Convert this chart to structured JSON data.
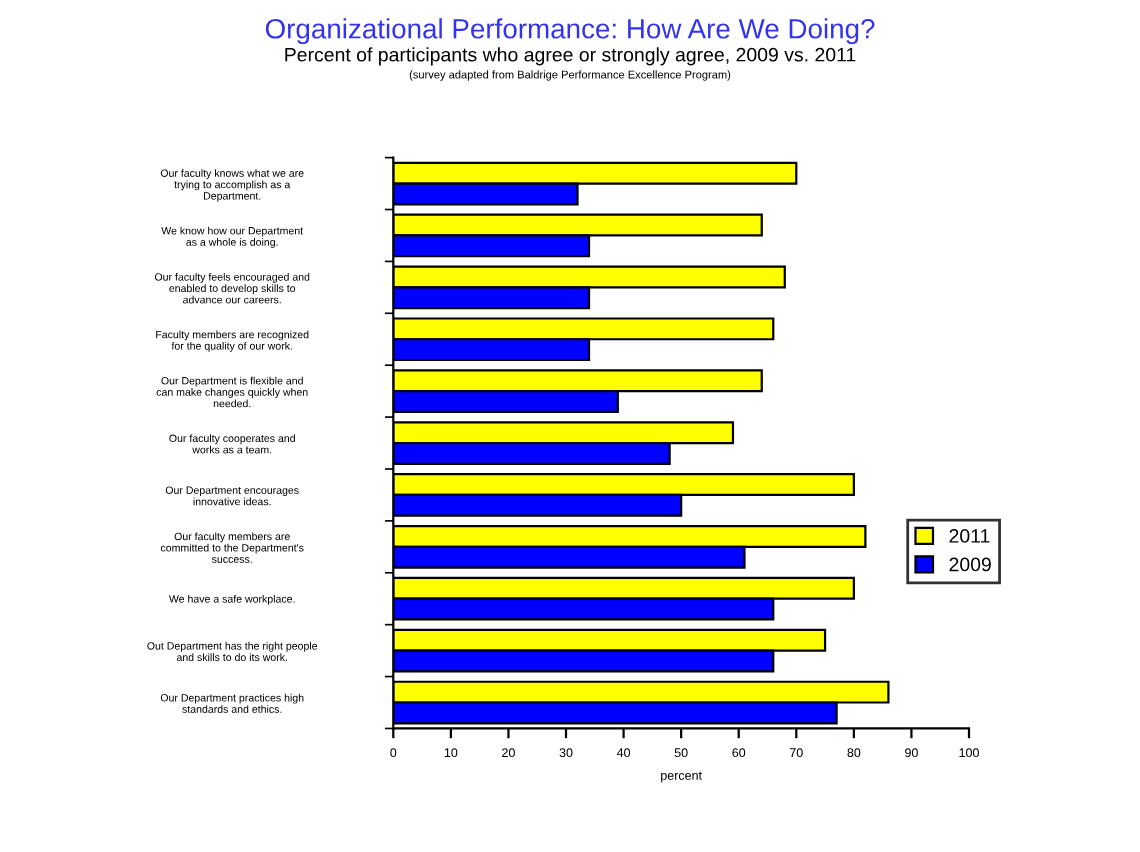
{
  "chart_data": {
    "type": "bar",
    "orientation": "horizontal",
    "title": "Organizational Performance: How Are We Doing?",
    "subtitle": "Percent of participants who agree or strongly agree, 2009 vs. 2011",
    "annotations": [
      "(survey adapted from Baldrige Performance Excellence Program)"
    ],
    "xlabel": "percent",
    "categories": [
      "Our faculty knows what we are\ntrying to accomplish as a\nDepartment.",
      "We know how our Department\nas a whole is doing.",
      "Our faculty feels encouraged and\nenabled to develop skills to\nadvance our careers.",
      "Faculty members are recognized\nfor the quality of our work.",
      "Our Department is flexible and\ncan make changes quickly when\nneeded.",
      "Our faculty cooperates and\nworks as a team.",
      "Our Department encourages\ninnovative ideas.",
      "Our faculty members are\ncommitted to the Department's\nsuccess.",
      "We have a safe workplace.",
      "Out Department has the right people\nand skills to do its work.",
      "Our Department practices high\nstandards and ethics."
    ],
    "series": [
      {
        "name": "2011",
        "color": "#ffff00",
        "values": [
          70,
          64,
          68,
          66,
          64,
          59,
          80,
          82,
          80,
          75,
          86
        ]
      },
      {
        "name": "2009",
        "color": "#0000ff",
        "values": [
          32,
          34,
          34,
          34,
          39,
          48,
          50,
          61,
          66,
          66,
          77
        ]
      }
    ],
    "xlim": [
      0,
      100
    ],
    "xticks": [
      0,
      10,
      20,
      30,
      40,
      50,
      60,
      70,
      80,
      90,
      100
    ],
    "legend": "right",
    "grid": false
  }
}
